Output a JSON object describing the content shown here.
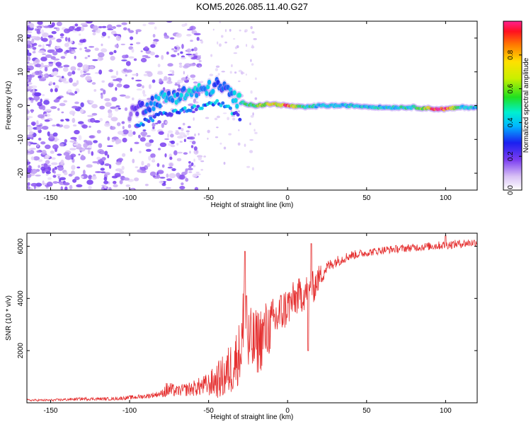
{
  "title": "KOM5.2026.085.11.40.G27",
  "chart_data": [
    {
      "type": "heatmap",
      "name": "spectrogram",
      "xlabel": "Height of straight line (km)",
      "ylabel": "Frequency (Hz)",
      "xlim": [
        -165,
        120
      ],
      "ylim": [
        -25,
        25
      ],
      "xticks": [
        -150,
        -100,
        -50,
        0,
        50,
        100
      ],
      "yticks": [
        -20,
        -10,
        0,
        10,
        20
      ],
      "colorbar": {
        "label": "Normalized spectral amplitude",
        "range": [
          0.0,
          1.0
        ],
        "ticks": [
          0.0,
          0.2,
          0.4,
          0.6,
          0.8
        ]
      },
      "ridge": {
        "x": [
          -100,
          -90,
          -80,
          -70,
          -60,
          -50,
          -45,
          -40,
          -35,
          -30,
          -20,
          -10,
          0,
          10,
          20,
          40,
          60,
          80,
          95,
          100,
          110,
          120
        ],
        "freq": [
          -2,
          0,
          2,
          3,
          4,
          5,
          6,
          5,
          3,
          1,
          0,
          0.5,
          0,
          -0.5,
          0,
          0,
          -0.5,
          -0.5,
          -1,
          -1,
          -0.5,
          -0.5
        ],
        "amplitude": [
          0.15,
          0.3,
          0.4,
          0.4,
          0.45,
          0.4,
          0.35,
          0.3,
          0.4,
          0.45,
          0.65,
          0.75,
          0.9,
          0.55,
          0.45,
          0.45,
          0.45,
          0.5,
          1.0,
          1.0,
          0.45,
          0.45
        ]
      }
    },
    {
      "type": "line",
      "name": "snr",
      "xlabel": "Height of straight line (km)",
      "ylabel": "SNR (10 * v/v)",
      "xlim": [
        -165,
        120
      ],
      "ylim": [
        0,
        6500
      ],
      "xticks": [
        -150,
        -100,
        -50,
        0,
        50,
        100
      ],
      "yticks": [
        2000,
        4000,
        6000
      ],
      "color": "#e53030",
      "x": [
        -165,
        -150,
        -130,
        -110,
        -100,
        -90,
        -80,
        -76,
        -70,
        -60,
        -50,
        -40,
        -35,
        -30,
        -27,
        -25,
        -20,
        -15,
        -10,
        -5,
        0,
        5,
        10,
        15,
        20,
        25,
        30,
        40,
        50,
        60,
        70,
        80,
        90,
        100,
        110,
        120
      ],
      "y": [
        100,
        100,
        150,
        150,
        200,
        250,
        350,
        500,
        450,
        550,
        700,
        1000,
        1400,
        2000,
        3000,
        2200,
        2300,
        2600,
        3000,
        3400,
        3700,
        4000,
        4200,
        4300,
        4800,
        5200,
        5400,
        5650,
        5750,
        5850,
        5900,
        5950,
        6000,
        6050,
        6100,
        6150
      ],
      "noise": [
        40,
        40,
        60,
        60,
        80,
        90,
        120,
        350,
        200,
        300,
        450,
        900,
        1100,
        1200,
        2500,
        1500,
        1300,
        1300,
        1000,
        900,
        800,
        700,
        700,
        700,
        500,
        250,
        220,
        180,
        150,
        150,
        150,
        150,
        160,
        170,
        160,
        160
      ],
      "spikes": [
        {
          "x": -27,
          "y": 5800
        },
        {
          "x": -26,
          "y": 4100
        },
        {
          "x": 15,
          "y": 6100
        },
        {
          "x": 13,
          "y": 2000
        },
        {
          "x": 100,
          "y": 6400
        }
      ]
    }
  ]
}
